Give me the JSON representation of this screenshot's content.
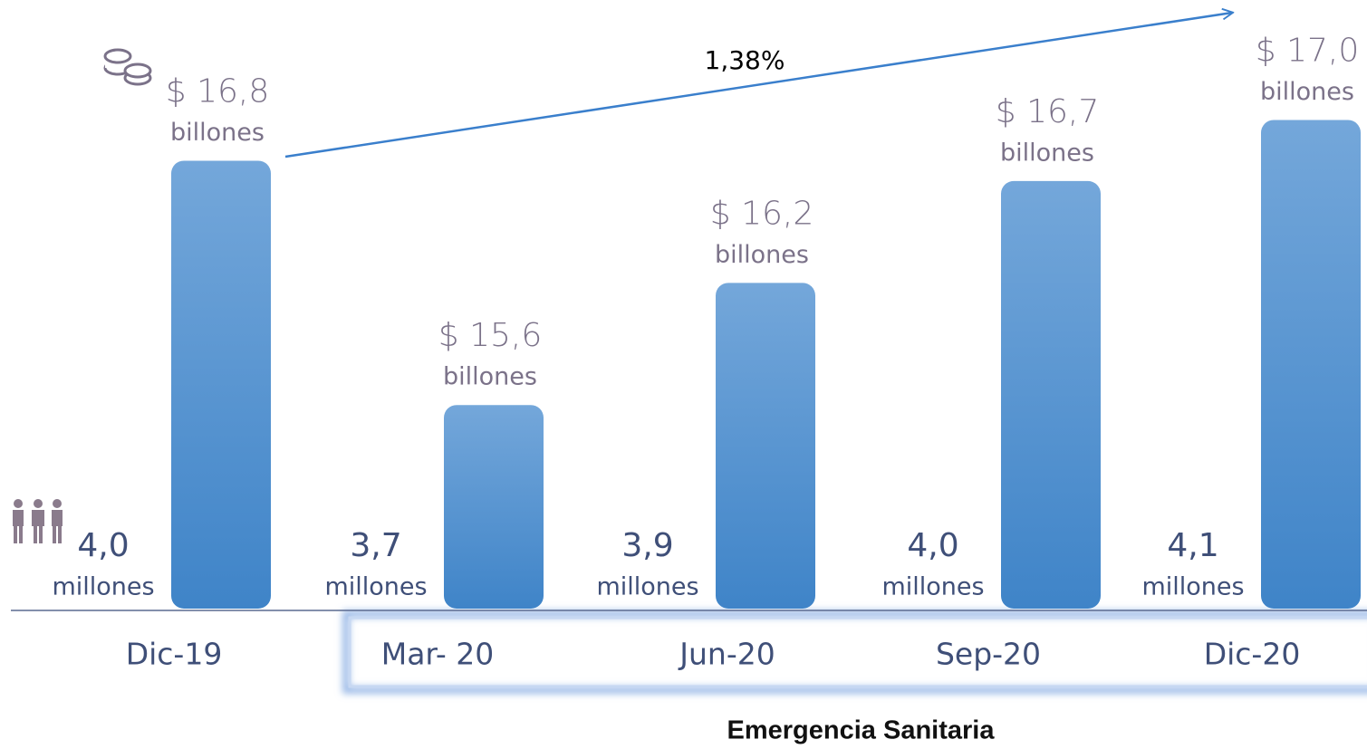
{
  "chart_data": {
    "type": "bar",
    "categories": [
      "Dic-19",
      "Mar- 20",
      "Jun-20",
      "Sep-20",
      "Dic-20"
    ],
    "series": [
      {
        "color": "#4a8ad0",
        "values": [
          16.8,
          15.6,
          16.2,
          16.7,
          17.0
        ],
        "value_labels": [
          "$ 16,8",
          "$ 15,6",
          "$ 16,2",
          "$ 16,7",
          "$ 17,0"
        ],
        "unit": "billones"
      },
      {
        "color": "#3f4f78",
        "values": [
          4.0,
          3.7,
          3.9,
          4.0,
          4.1
        ],
        "value_labels": [
          "4,0",
          "3,7",
          "3,9",
          "4,0",
          "4,1"
        ],
        "unit": "millones"
      }
    ],
    "ylim": [
      14.6,
      17.1
    ],
    "annotation": "1,38%",
    "footer": "Emergencia Sanitaria"
  }
}
